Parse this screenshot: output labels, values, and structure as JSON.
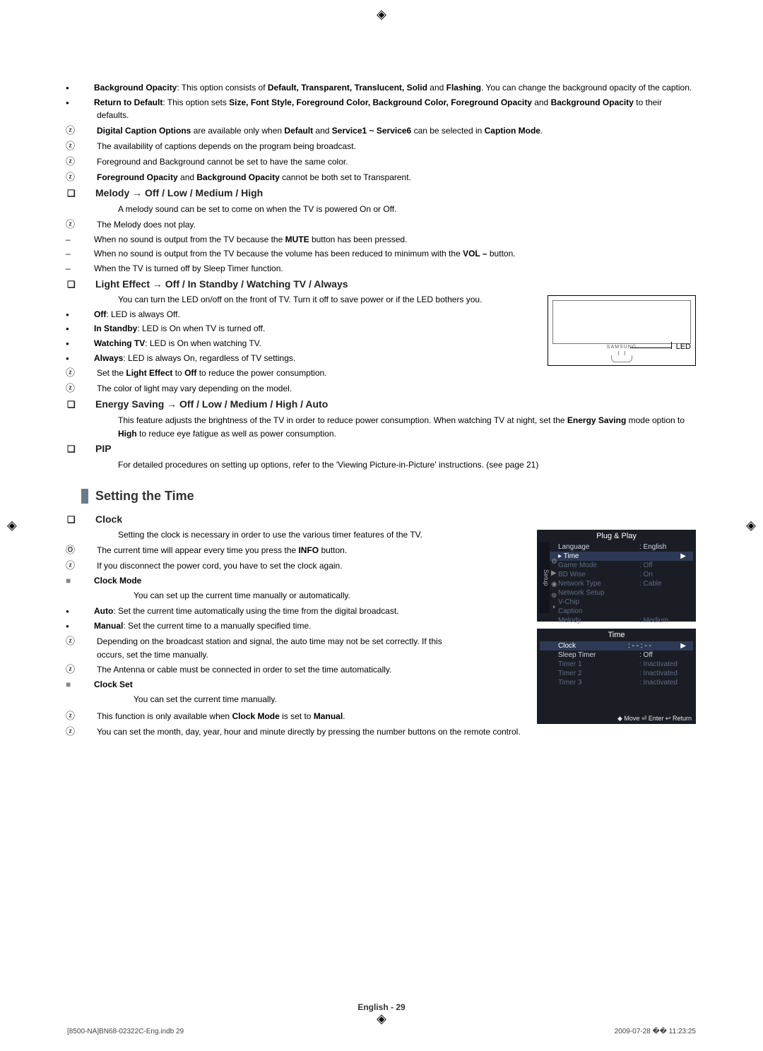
{
  "cropGlyph": "◈",
  "top": {
    "bullets": [
      {
        "term": "Background Opacity",
        "rest": ": This option consists of ",
        "opts": "Default, Transparent, Translucent, Solid",
        "and": " and ",
        "last": "Flashing",
        "tail": ". You can change the background opacity of the caption."
      },
      {
        "term": "Return to Default",
        "rest": ": This option sets ",
        "opts": "Size, Font Style, Foreground Color, Background Color, Foreground Opacity",
        "and": " and ",
        "last": "Background Opacity",
        "tail": " to their defaults."
      }
    ],
    "notes": [
      {
        "a": "Digital Caption Options",
        "b": " are available only when ",
        "c": "Default",
        "d": " and ",
        "e": "Service1 ~ Service6",
        "f": " can be selected in ",
        "g": "Caption Mode",
        "h": "."
      },
      {
        "plain": "The availability of captions depends on the program being broadcast."
      },
      {
        "plain": "Foreground and Background cannot be set to have the same color."
      },
      {
        "a": "Foreground Opacity",
        "b": " and ",
        "c": "Background Opacity",
        "d": " cannot be both set to Transparent."
      }
    ]
  },
  "melody": {
    "title": "Melody → Off / Low / Medium / High",
    "desc": "A melody sound can be set to come on when the TV is powered On or Off.",
    "noteHead": "The Melody does not play.",
    "dashes": [
      {
        "pre": "When no sound is output from the TV because the ",
        "b": "MUTE",
        "post": " button has been pressed."
      },
      {
        "pre": "When no sound is output from the TV because the volume has been reduced to minimum with the ",
        "b": "VOL –",
        "post": " button."
      },
      {
        "pre": "When the TV is turned off by Sleep Timer function.",
        "b": "",
        "post": ""
      }
    ]
  },
  "light": {
    "title": "Light Effect → Off / In Standby / Watching TV / Always",
    "desc": "You can turn the LED on/off on the front of TV. Turn it off to save power or if the LED bothers you.",
    "bullets": [
      {
        "b": "Off",
        "t": ": LED is always Off."
      },
      {
        "b": "In Standby",
        "t": ": LED is On when TV is turned off."
      },
      {
        "b": "Watching TV",
        "t": ": LED is On when watching TV."
      },
      {
        "b": "Always",
        "t": ": LED is always On, regardless of TV settings."
      }
    ],
    "notes": [
      {
        "a": "Set the ",
        "b": "Light Effect",
        "c": " to ",
        "d": "Off",
        "e": " to reduce the power consumption."
      },
      {
        "plain": "The color of light may vary depending on the model."
      }
    ],
    "ledLabel": "LED",
    "tvLogo": "SAMSUNG"
  },
  "energy": {
    "title": "Energy Saving → Off / Low / Medium / High / Auto",
    "l1": "This feature adjusts the brightness of the TV in order to reduce power consumption. When watching TV at night, set the ",
    "b1": "Energy Saving",
    "l2": " mode option to ",
    "b2": "High",
    "l3": " to reduce eye fatigue as well as power consumption."
  },
  "pip": {
    "title": "PIP",
    "desc": "For detailed procedures on setting up options, refer to the 'Viewing Picture-in-Picture' instructions. (see page 21)"
  },
  "sectionTitle": "Setting the Time",
  "clock": {
    "title": "Clock",
    "desc": "Setting the clock is necessary in order to use the various timer features of the TV.",
    "oNote": {
      "a": "The current time will appear every time you press the ",
      "b": "INFO",
      "c": " button."
    },
    "note1": "If you disconnect the power cord, you have to set the clock again.",
    "mode": {
      "head": "Clock Mode",
      "desc": "You can set up the current time manually or automatically.",
      "bullets": [
        {
          "b": "Auto",
          "t": ": Set the current time automatically using the time from the digital broadcast."
        },
        {
          "b": "Manual",
          "t": ": Set the current time to a manually specified time."
        }
      ],
      "notes": [
        "Depending on the broadcast station and signal, the auto time may not be set correctly. If this occurs, set the time manually.",
        "The Antenna or cable must be connected in order to set the time automatically."
      ]
    },
    "set": {
      "head": "Clock Set",
      "desc": "You can set the current time manually.",
      "notes": [
        {
          "a": "This function is only available when ",
          "b": "Clock Mode",
          "c": " is set to ",
          "d": "Manual",
          "e": "."
        },
        {
          "plain": "You can set the month, day, year, hour and minute directly by pressing the number buttons on the remote control."
        }
      ]
    }
  },
  "osd1": {
    "title": "Plug & Play",
    "sidetab": "Setup",
    "rows": [
      {
        "k": "Language",
        "v": ": English"
      },
      {
        "k": "▸ Time",
        "v": "",
        "hl": true
      },
      {
        "k": "Game Mode",
        "v": ": Off",
        "dim": true
      },
      {
        "k": "BD Wise",
        "v": ": On",
        "dim": true
      },
      {
        "k": "Network Type",
        "v": ": Cable",
        "dim": true
      },
      {
        "k": "Network Setup",
        "v": "",
        "dim": true
      },
      {
        "k": "V-Chip",
        "v": "",
        "dim": true
      },
      {
        "k": "Caption",
        "v": "",
        "dim": true
      },
      {
        "k": "Melody",
        "v": ": Medium",
        "dim": true
      }
    ]
  },
  "osd2": {
    "title": "Time",
    "rows": [
      {
        "k": "Clock",
        "v": ": - - : - -",
        "hl": true
      },
      {
        "k": "Sleep Timer",
        "v": ": Off"
      },
      {
        "k": "Timer 1",
        "v": ": Inactivated",
        "dim": true
      },
      {
        "k": "Timer 2",
        "v": ": Inactivated",
        "dim": true
      },
      {
        "k": "Timer 3",
        "v": ": Inactivated",
        "dim": true
      }
    ],
    "footer": "◆ Move   ⏎ Enter   ↩ Return"
  },
  "footerPage": "English - 29",
  "footerLeft": "[8500-NA]BN68-02322C-Eng.indb   29",
  "footerRight": "2009-07-28   �� 11:23:25"
}
